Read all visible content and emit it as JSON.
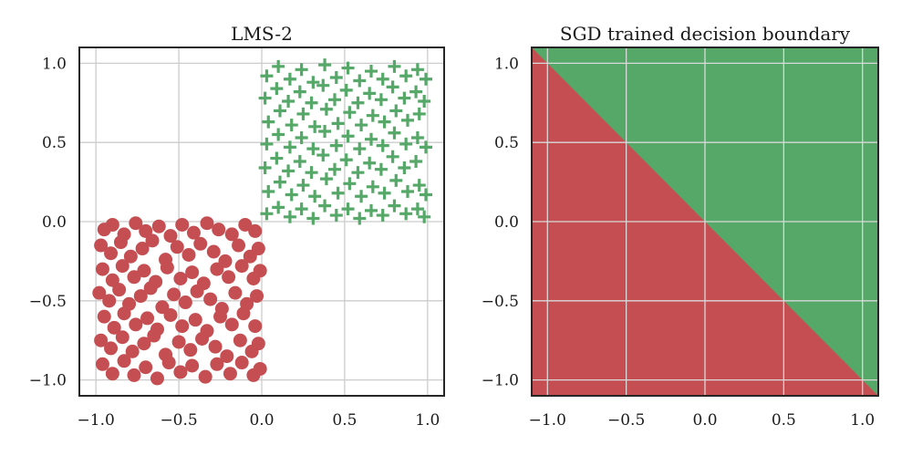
{
  "colors": {
    "red": "#c44e52",
    "green": "#55a868",
    "grid": "#cccccc",
    "axes": "#262626"
  },
  "chart_data": [
    {
      "type": "scatter",
      "title": "LMS-2",
      "xlabel": "",
      "ylabel": "",
      "xlim": [
        -1.1,
        1.1
      ],
      "ylim": [
        -1.1,
        1.1
      ],
      "xticks": [
        -1.0,
        -0.5,
        0.0,
        0.5,
        1.0
      ],
      "yticks": [
        -1.0,
        -0.5,
        0.0,
        0.5,
        1.0
      ],
      "xtick_labels": [
        "−1.0",
        "−0.5",
        "0.0",
        "0.5",
        "1.0"
      ],
      "ytick_labels": [
        "−1.0",
        "−0.5",
        "0.0",
        "0.5",
        "1.0"
      ],
      "grid": true,
      "series": [
        {
          "marker": "circle",
          "color": "#c44e52",
          "points": [
            [
              -0.95,
              -0.05
            ],
            [
              -0.9,
              -0.02
            ],
            [
              -0.83,
              -0.08
            ],
            [
              -0.76,
              -0.01
            ],
            [
              -0.7,
              -0.06
            ],
            [
              -0.62,
              -0.03
            ],
            [
              -0.55,
              -0.09
            ],
            [
              -0.48,
              -0.02
            ],
            [
              -0.41,
              -0.07
            ],
            [
              -0.33,
              -0.01
            ],
            [
              -0.26,
              -0.05
            ],
            [
              -0.18,
              -0.08
            ],
            [
              -0.1,
              -0.02
            ],
            [
              -0.04,
              -0.06
            ],
            [
              -0.97,
              -0.15
            ],
            [
              -0.91,
              -0.2
            ],
            [
              -0.85,
              -0.13
            ],
            [
              -0.79,
              -0.22
            ],
            [
              -0.72,
              -0.17
            ],
            [
              -0.66,
              -0.12
            ],
            [
              -0.58,
              -0.24
            ],
            [
              -0.51,
              -0.16
            ],
            [
              -0.44,
              -0.21
            ],
            [
              -0.37,
              -0.14
            ],
            [
              -0.29,
              -0.19
            ],
            [
              -0.22,
              -0.25
            ],
            [
              -0.14,
              -0.15
            ],
            [
              -0.07,
              -0.22
            ],
            [
              -0.02,
              -0.17
            ],
            [
              -0.96,
              -0.3
            ],
            [
              -0.9,
              -0.37
            ],
            [
              -0.84,
              -0.28
            ],
            [
              -0.77,
              -0.35
            ],
            [
              -0.71,
              -0.31
            ],
            [
              -0.64,
              -0.38
            ],
            [
              -0.57,
              -0.29
            ],
            [
              -0.49,
              -0.36
            ],
            [
              -0.42,
              -0.32
            ],
            [
              -0.35,
              -0.39
            ],
            [
              -0.27,
              -0.3
            ],
            [
              -0.2,
              -0.35
            ],
            [
              -0.12,
              -0.28
            ],
            [
              -0.05,
              -0.36
            ],
            [
              -0.01,
              -0.31
            ],
            [
              -0.98,
              -0.45
            ],
            [
              -0.92,
              -0.5
            ],
            [
              -0.86,
              -0.43
            ],
            [
              -0.8,
              -0.52
            ],
            [
              -0.73,
              -0.47
            ],
            [
              -0.67,
              -0.42
            ],
            [
              -0.6,
              -0.54
            ],
            [
              -0.53,
              -0.46
            ],
            [
              -0.46,
              -0.51
            ],
            [
              -0.39,
              -0.44
            ],
            [
              -0.31,
              -0.49
            ],
            [
              -0.24,
              -0.55
            ],
            [
              -0.16,
              -0.45
            ],
            [
              -0.09,
              -0.52
            ],
            [
              -0.03,
              -0.47
            ],
            [
              -0.95,
              -0.6
            ],
            [
              -0.89,
              -0.67
            ],
            [
              -0.83,
              -0.58
            ],
            [
              -0.76,
              -0.65
            ],
            [
              -0.69,
              -0.61
            ],
            [
              -0.63,
              -0.68
            ],
            [
              -0.55,
              -0.59
            ],
            [
              -0.48,
              -0.66
            ],
            [
              -0.4,
              -0.62
            ],
            [
              -0.33,
              -0.69
            ],
            [
              -0.25,
              -0.6
            ],
            [
              -0.18,
              -0.65
            ],
            [
              -0.11,
              -0.58
            ],
            [
              -0.04,
              -0.66
            ],
            [
              -0.97,
              -0.75
            ],
            [
              -0.91,
              -0.8
            ],
            [
              -0.84,
              -0.73
            ],
            [
              -0.78,
              -0.82
            ],
            [
              -0.71,
              -0.77
            ],
            [
              -0.65,
              -0.72
            ],
            [
              -0.58,
              -0.84
            ],
            [
              -0.5,
              -0.76
            ],
            [
              -0.43,
              -0.81
            ],
            [
              -0.36,
              -0.74
            ],
            [
              -0.28,
              -0.79
            ],
            [
              -0.21,
              -0.85
            ],
            [
              -0.13,
              -0.75
            ],
            [
              -0.06,
              -0.82
            ],
            [
              -0.02,
              -0.77
            ],
            [
              -0.96,
              -0.9
            ],
            [
              -0.9,
              -0.96
            ],
            [
              -0.83,
              -0.88
            ],
            [
              -0.77,
              -0.97
            ],
            [
              -0.7,
              -0.92
            ],
            [
              -0.63,
              -0.99
            ],
            [
              -0.56,
              -0.89
            ],
            [
              -0.49,
              -0.95
            ],
            [
              -0.42,
              -0.91
            ],
            [
              -0.34,
              -0.98
            ],
            [
              -0.27,
              -0.9
            ],
            [
              -0.19,
              -0.96
            ],
            [
              -0.12,
              -0.89
            ],
            [
              -0.05,
              -0.97
            ],
            [
              -0.01,
              -0.93
            ]
          ]
        },
        {
          "marker": "plus",
          "color": "#55a868",
          "points": [
            [
              0.03,
              0.92
            ],
            [
              0.1,
              0.98
            ],
            [
              0.17,
              0.9
            ],
            [
              0.24,
              0.96
            ],
            [
              0.31,
              0.88
            ],
            [
              0.38,
              0.99
            ],
            [
              0.45,
              0.91
            ],
            [
              0.52,
              0.97
            ],
            [
              0.59,
              0.89
            ],
            [
              0.66,
              0.95
            ],
            [
              0.73,
              0.9
            ],
            [
              0.8,
              0.98
            ],
            [
              0.87,
              0.92
            ],
            [
              0.94,
              0.96
            ],
            [
              0.99,
              0.9
            ],
            [
              0.02,
              0.78
            ],
            [
              0.09,
              0.84
            ],
            [
              0.16,
              0.76
            ],
            [
              0.23,
              0.82
            ],
            [
              0.3,
              0.75
            ],
            [
              0.37,
              0.86
            ],
            [
              0.44,
              0.77
            ],
            [
              0.51,
              0.83
            ],
            [
              0.58,
              0.75
            ],
            [
              0.65,
              0.81
            ],
            [
              0.72,
              0.77
            ],
            [
              0.79,
              0.85
            ],
            [
              0.86,
              0.78
            ],
            [
              0.93,
              0.82
            ],
            [
              0.98,
              0.76
            ],
            [
              0.04,
              0.63
            ],
            [
              0.11,
              0.7
            ],
            [
              0.18,
              0.61
            ],
            [
              0.25,
              0.68
            ],
            [
              0.32,
              0.6
            ],
            [
              0.39,
              0.71
            ],
            [
              0.46,
              0.62
            ],
            [
              0.53,
              0.69
            ],
            [
              0.6,
              0.61
            ],
            [
              0.67,
              0.67
            ],
            [
              0.74,
              0.63
            ],
            [
              0.81,
              0.7
            ],
            [
              0.88,
              0.64
            ],
            [
              0.95,
              0.68
            ],
            [
              0.03,
              0.49
            ],
            [
              0.1,
              0.55
            ],
            [
              0.17,
              0.47
            ],
            [
              0.24,
              0.53
            ],
            [
              0.31,
              0.46
            ],
            [
              0.38,
              0.57
            ],
            [
              0.45,
              0.48
            ],
            [
              0.52,
              0.54
            ],
            [
              0.59,
              0.46
            ],
            [
              0.66,
              0.52
            ],
            [
              0.73,
              0.48
            ],
            [
              0.8,
              0.56
            ],
            [
              0.87,
              0.49
            ],
            [
              0.94,
              0.53
            ],
            [
              0.99,
              0.47
            ],
            [
              0.02,
              0.34
            ],
            [
              0.09,
              0.4
            ],
            [
              0.16,
              0.32
            ],
            [
              0.23,
              0.38
            ],
            [
              0.3,
              0.31
            ],
            [
              0.37,
              0.42
            ],
            [
              0.44,
              0.33
            ],
            [
              0.51,
              0.39
            ],
            [
              0.58,
              0.31
            ],
            [
              0.65,
              0.37
            ],
            [
              0.72,
              0.33
            ],
            [
              0.79,
              0.41
            ],
            [
              0.86,
              0.34
            ],
            [
              0.93,
              0.38
            ],
            [
              0.04,
              0.19
            ],
            [
              0.11,
              0.25
            ],
            [
              0.18,
              0.17
            ],
            [
              0.25,
              0.23
            ],
            [
              0.32,
              0.16
            ],
            [
              0.39,
              0.27
            ],
            [
              0.46,
              0.18
            ],
            [
              0.53,
              0.24
            ],
            [
              0.6,
              0.16
            ],
            [
              0.67,
              0.22
            ],
            [
              0.74,
              0.18
            ],
            [
              0.81,
              0.26
            ],
            [
              0.88,
              0.19
            ],
            [
              0.95,
              0.23
            ],
            [
              0.99,
              0.17
            ],
            [
              0.03,
              0.05
            ],
            [
              0.1,
              0.09
            ],
            [
              0.17,
              0.03
            ],
            [
              0.24,
              0.08
            ],
            [
              0.31,
              0.02
            ],
            [
              0.38,
              0.1
            ],
            [
              0.45,
              0.04
            ],
            [
              0.52,
              0.08
            ],
            [
              0.59,
              0.02
            ],
            [
              0.66,
              0.07
            ],
            [
              0.73,
              0.04
            ],
            [
              0.8,
              0.1
            ],
            [
              0.87,
              0.05
            ],
            [
              0.94,
              0.08
            ],
            [
              0.98,
              0.03
            ]
          ]
        }
      ]
    },
    {
      "type": "heatmap",
      "title": "SGD trained decision boundary",
      "xlabel": "",
      "ylabel": "",
      "xlim": [
        -1.1,
        1.1
      ],
      "ylim": [
        -1.1,
        1.1
      ],
      "xticks": [
        -1.0,
        -0.5,
        0.0,
        0.5,
        1.0
      ],
      "yticks": [
        -1.0,
        -0.5,
        0.0,
        0.5,
        1.0
      ],
      "xtick_labels": [
        "−1.0",
        "−0.5",
        "0.0",
        "0.5",
        "1.0"
      ],
      "ytick_labels": [
        "−1.0",
        "−0.5",
        "0.0",
        "0.5",
        "1.0"
      ],
      "grid": true,
      "boundary_line": {
        "slope": -1.0,
        "intercept": 0.0
      },
      "region_above": "#55a868",
      "region_below": "#c44e52"
    }
  ]
}
